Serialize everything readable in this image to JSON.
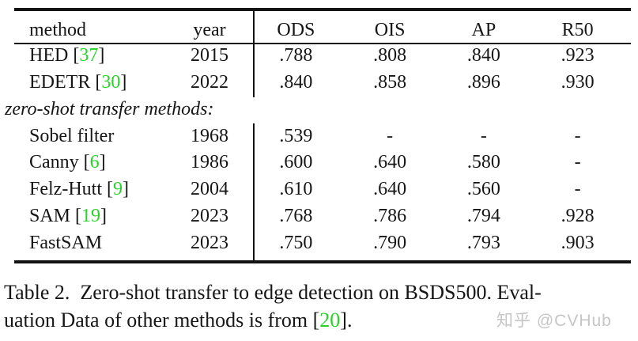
{
  "table": {
    "columns": [
      "method",
      "year",
      "ODS",
      "OIS",
      "AP",
      "R50"
    ],
    "section_label": "zero-shot transfer methods:",
    "rows": [
      {
        "method": "HED",
        "cite": "37",
        "year": "2015",
        "values": [
          ".788",
          ".808",
          ".840",
          ".923"
        ],
        "section": "supervised"
      },
      {
        "method": "EDETR",
        "cite": "30",
        "year": "2022",
        "values": [
          ".840",
          ".858",
          ".896",
          ".930"
        ],
        "section": "supervised"
      },
      {
        "method": "Sobel filter",
        "cite": null,
        "year": "1968",
        "values": [
          ".539",
          "-",
          "-",
          "-"
        ],
        "section": "zero-shot"
      },
      {
        "method": "Canny",
        "cite": "6",
        "year": "1986",
        "values": [
          ".600",
          ".640",
          ".580",
          "-"
        ],
        "section": "zero-shot"
      },
      {
        "method": "Felz-Hutt",
        "cite": "9",
        "year": "2004",
        "values": [
          ".610",
          ".640",
          ".560",
          "-"
        ],
        "section": "zero-shot"
      },
      {
        "method": "SAM",
        "cite": "19",
        "year": "2023",
        "values": [
          ".768",
          ".786",
          ".794",
          ".928"
        ],
        "section": "zero-shot"
      },
      {
        "method": "FastSAM",
        "cite": null,
        "year": "2023",
        "values": [
          ".750",
          ".790",
          ".793",
          ".903"
        ],
        "section": "zero-shot"
      }
    ]
  },
  "caption": {
    "line1": "Table 2.  Zero-shot transfer to edge detection on BSDS500. Eval-",
    "line2_pre": "uation Data of other methods is from [",
    "line2_cite": "20",
    "line2_post": "]."
  },
  "watermark": {
    "text": "知乎 @CVHub"
  },
  "colors": {
    "citation_green": "#28d228",
    "text": "#161616",
    "rule_black": "#131313",
    "watermark_gray": "#c6c6c6"
  }
}
